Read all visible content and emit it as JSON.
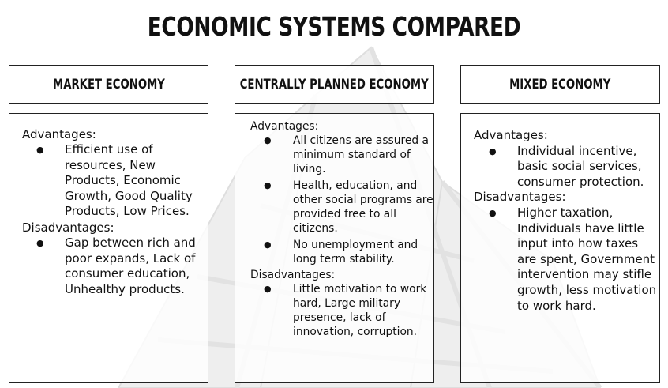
{
  "title": "ECONOMIC SYSTEMS COMPARED",
  "columns": [
    {
      "heading": "MARKET ECONOMY",
      "advantages_label": "Advantages:",
      "advantages": [
        "Efficient use of resources, New Products, Economic Growth, Good Quality Products, Low Prices."
      ],
      "disadvantages_label": "Disadvantages:",
      "disadvantages": [
        "Gap between rich and poor expands, Lack of consumer education, Unhealthy products."
      ]
    },
    {
      "heading": "CENTRALLY PLANNED ECONOMY",
      "advantages_label": "Advantages:",
      "advantages": [
        "All citizens are assured a minimum standard of living.",
        "Health, education, and other social programs are provided free to all citizens.",
        "No unemployment and long term stability."
      ],
      "disadvantages_label": "Disadvantages:",
      "disadvantages": [
        "Little motivation to work hard, Large military presence, lack of innovation, corruption."
      ]
    },
    {
      "heading": "MIXED ECONOMY",
      "advantages_label": "Advantages:",
      "advantages": [
        "Individual incentive, basic social services, consumer protection."
      ],
      "disadvantages_label": "Disadvantages:",
      "disadvantages": [
        "Higher taxation, Individuals have little input into how taxes are spent, Government intervention may stifle growth, less motivation to work hard."
      ]
    }
  ],
  "colors": {
    "border": "#222222",
    "text": "#111111",
    "background": "#ffffff"
  }
}
